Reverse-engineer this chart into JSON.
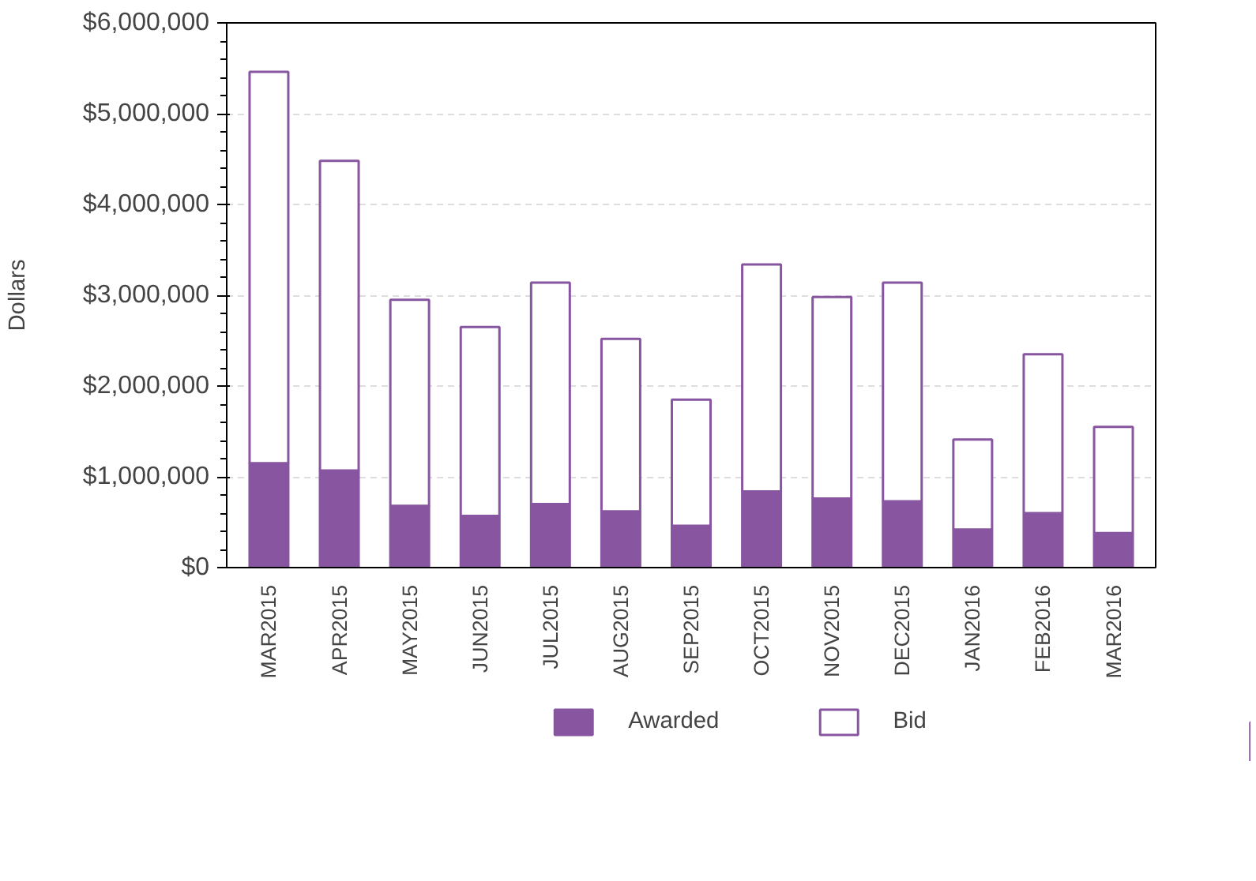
{
  "chart_data": {
    "type": "bar",
    "stacked": true,
    "ylabel": "Dollars",
    "categories": [
      "MAR2015",
      "APR2015",
      "MAY2015",
      "JUN2015",
      "JUL2015",
      "AUG2015",
      "SEP2015",
      "OCT2015",
      "NOV2015",
      "DEC2015",
      "JAN2016",
      "FEB2016",
      "MAR2016"
    ],
    "series": [
      {
        "name": "Awarded",
        "color": "#8856a0",
        "values": [
          1150000,
          1070000,
          680000,
          570000,
          700000,
          620000,
          460000,
          840000,
          760000,
          730000,
          420000,
          600000,
          380000
        ]
      },
      {
        "name": "Bid",
        "color": "#ffffff",
        "values": [
          4310000,
          3410000,
          2270000,
          2080000,
          2440000,
          1900000,
          1390000,
          2500000,
          2220000,
          2410000,
          990000,
          1750000,
          1170000
        ]
      }
    ],
    "ylim": [
      0,
      6000000
    ],
    "yticks": [
      {
        "value": 0,
        "label": "$0"
      },
      {
        "value": 1000000,
        "label": "$1,000,000"
      },
      {
        "value": 2000000,
        "label": "$2,000,000"
      },
      {
        "value": 3000000,
        "label": "$3,000,000"
      },
      {
        "value": 4000000,
        "label": "$4,000,000"
      },
      {
        "value": 5000000,
        "label": "$5,000,000"
      },
      {
        "value": 6000000,
        "label": "$6,000,000"
      }
    ],
    "grid": "y",
    "legend": "bottom"
  }
}
